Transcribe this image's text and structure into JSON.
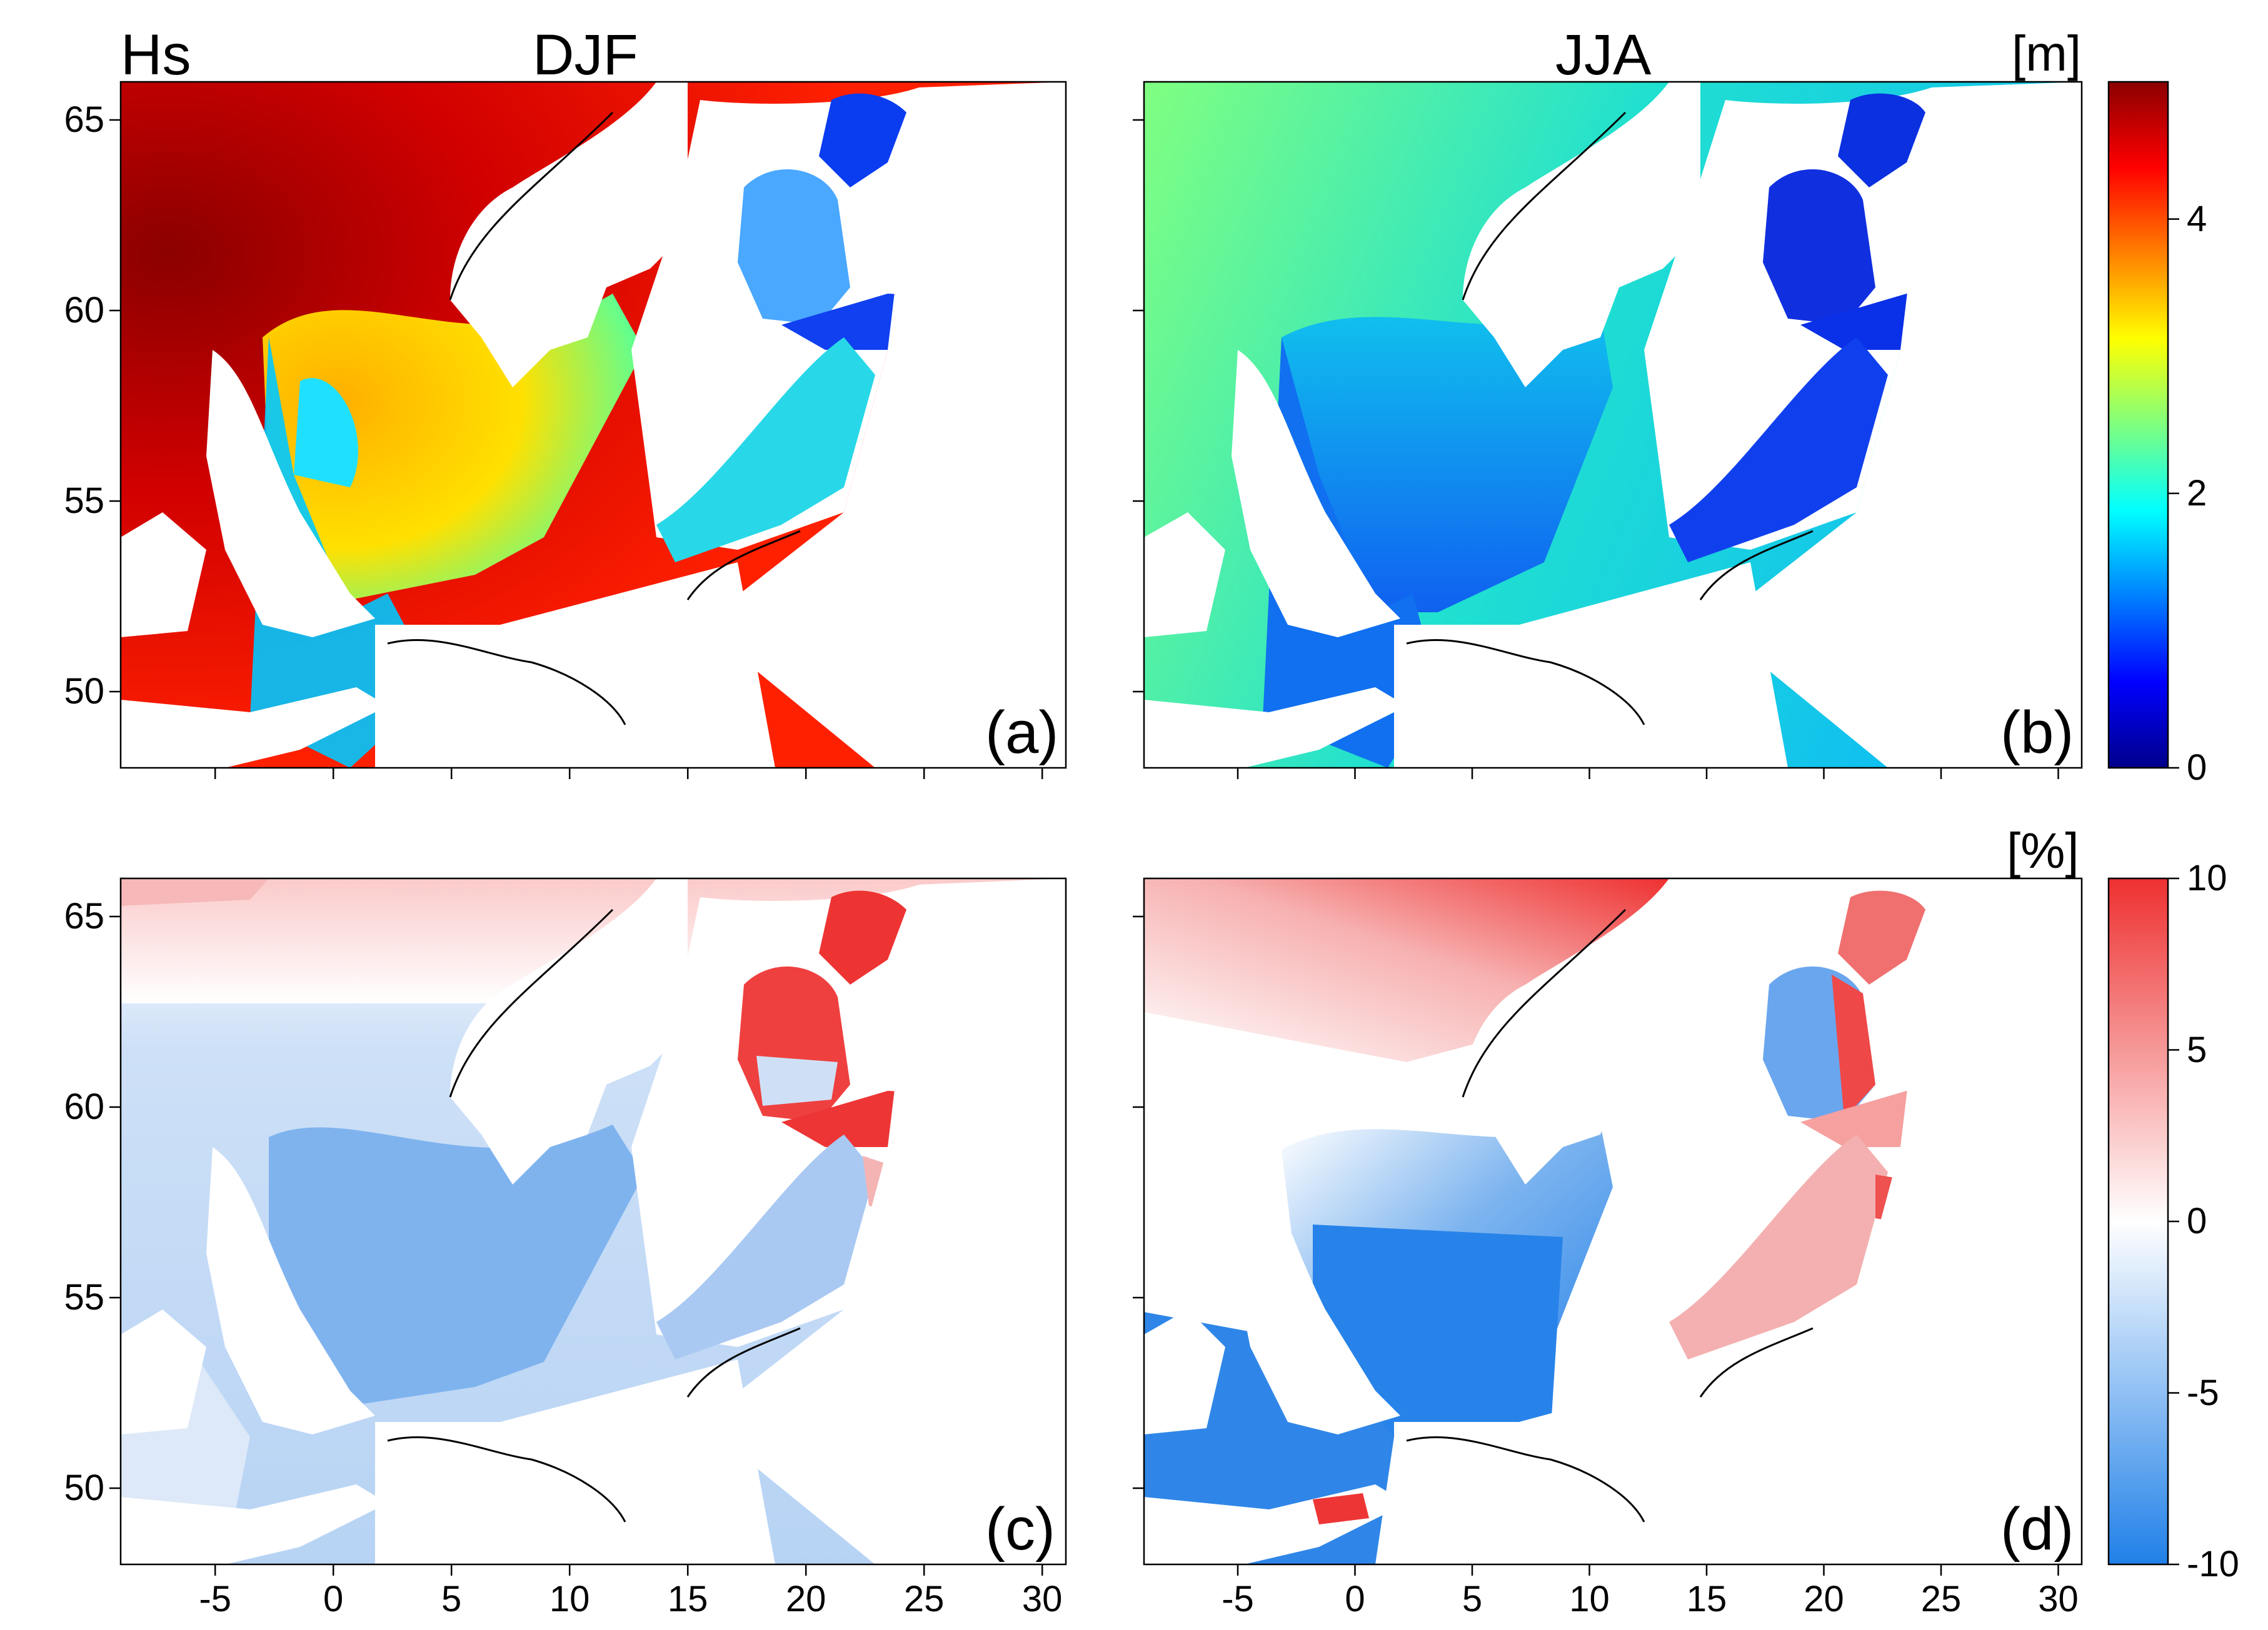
{
  "headers": {
    "variable": "Hs",
    "season_left": "DJF",
    "season_right": "JJA",
    "unit_top": "[m]",
    "unit_bottom": "[%]"
  },
  "panels": [
    {
      "id": "a",
      "label": "(a)",
      "field": "hs",
      "season": "DJF"
    },
    {
      "id": "b",
      "label": "(b)",
      "field": "hs",
      "season": "JJA"
    },
    {
      "id": "c",
      "label": "(c)",
      "field": "change",
      "season": "DJF"
    },
    {
      "id": "d",
      "label": "(d)",
      "field": "change",
      "season": "JJA"
    }
  ],
  "map_extent": {
    "lon": [
      -9,
      31
    ],
    "lat": [
      48,
      66
    ]
  },
  "x_ticks": [
    "-5",
    "0",
    "5",
    "10",
    "15",
    "20",
    "25",
    "30"
  ],
  "x_tick_values": [
    -5,
    0,
    5,
    10,
    15,
    20,
    25,
    30
  ],
  "y_ticks": [
    "50",
    "55",
    "60",
    "65"
  ],
  "y_tick_values": [
    50,
    55,
    60,
    65
  ],
  "colorbar_top": {
    "ticks": [
      "0",
      "2",
      "4"
    ],
    "tick_values": [
      0,
      2,
      4
    ],
    "range": [
      0,
      5
    ],
    "colors": [
      "#00008b",
      "#0000ff",
      "#0080ff",
      "#00ffff",
      "#7fff7f",
      "#ffff00",
      "#ff8000",
      "#ff0000",
      "#8b0000"
    ]
  },
  "colorbar_bottom": {
    "ticks": [
      "-10",
      "-5",
      "0",
      "5",
      "10"
    ],
    "tick_values": [
      -10,
      -5,
      0,
      5,
      10
    ],
    "range": [
      -10,
      10
    ],
    "colors": [
      "#2080e8",
      "#ffffff",
      "#ee3030"
    ]
  },
  "colors": {
    "land": "#ffffff",
    "coast": "#000000"
  }
}
